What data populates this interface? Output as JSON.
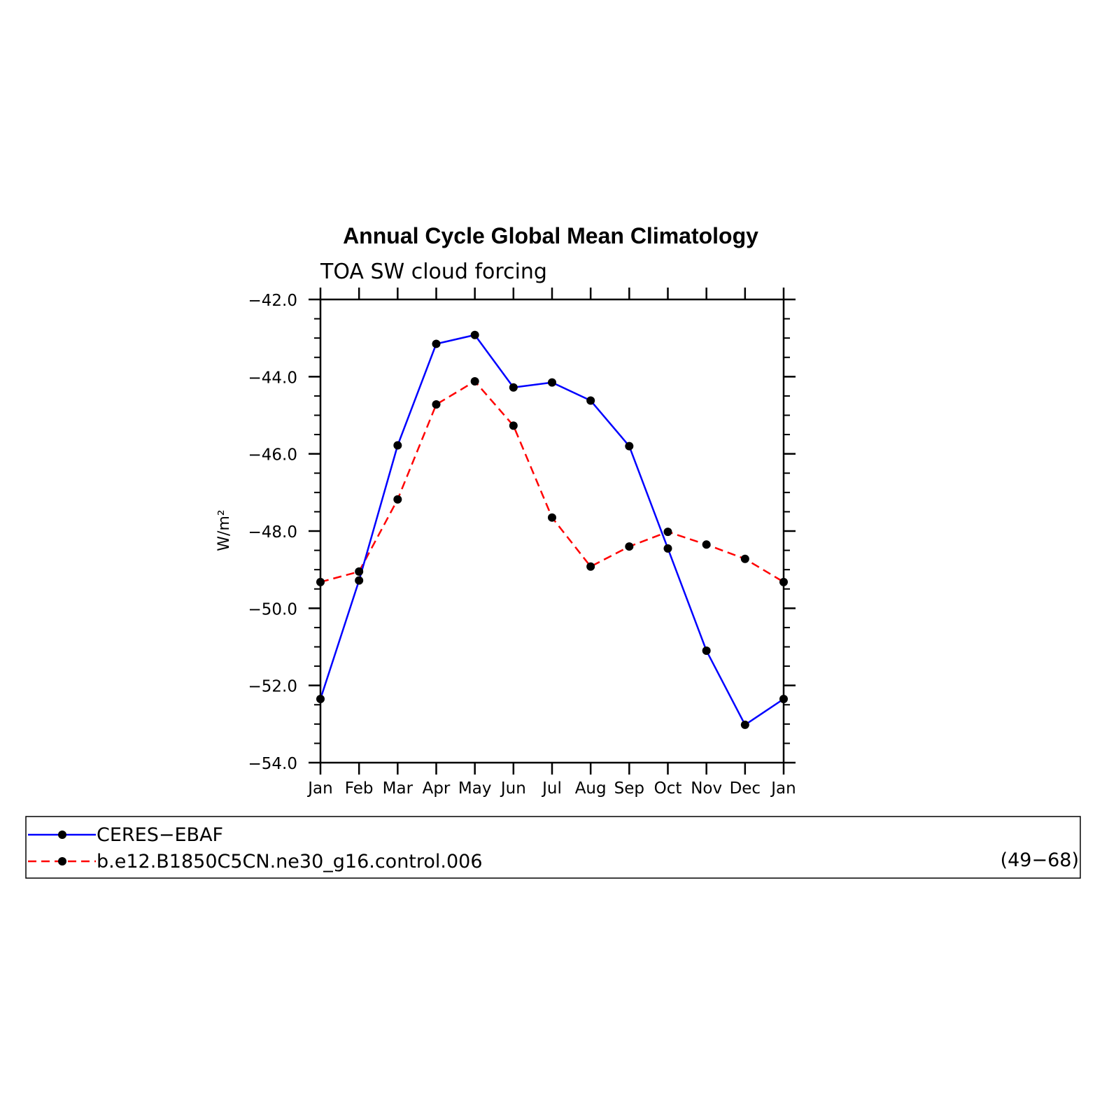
{
  "chart_data": {
    "type": "line",
    "title": "Annual Cycle Global Mean Climatology",
    "subtitle": "TOA SW cloud forcing",
    "xlabel": "",
    "ylabel": "W/m²",
    "ylim": [
      -54.0,
      -42.0
    ],
    "yticks": [
      "-42.0",
      "-44.0",
      "-46.0",
      "-48.0",
      "-50.0",
      "-52.0",
      "-54.0"
    ],
    "categories": [
      "Jan",
      "Feb",
      "Mar",
      "Apr",
      "May",
      "Jun",
      "Jul",
      "Aug",
      "Sep",
      "Oct",
      "Nov",
      "Dec",
      "Jan"
    ],
    "series": [
      {
        "name": "CERES−EBAF",
        "color": "#0000ff",
        "dash": "solid",
        "values": [
          -52.35,
          -49.28,
          -45.78,
          -43.15,
          -42.92,
          -44.28,
          -44.15,
          -44.62,
          -45.8,
          -48.45,
          -51.1,
          -53.02,
          -52.35
        ]
      },
      {
        "name": "b.e12.B1850C5CN.ne30_g16.control.006",
        "note": "(49−68)",
        "color": "#ff0000",
        "dash": "dashed",
        "values": [
          -49.32,
          -49.05,
          -47.18,
          -44.72,
          -44.12,
          -45.27,
          -47.65,
          -48.92,
          -48.4,
          -48.02,
          -48.35,
          -48.72,
          -49.32
        ]
      }
    ],
    "marker_color": "#000000",
    "grid": false
  }
}
